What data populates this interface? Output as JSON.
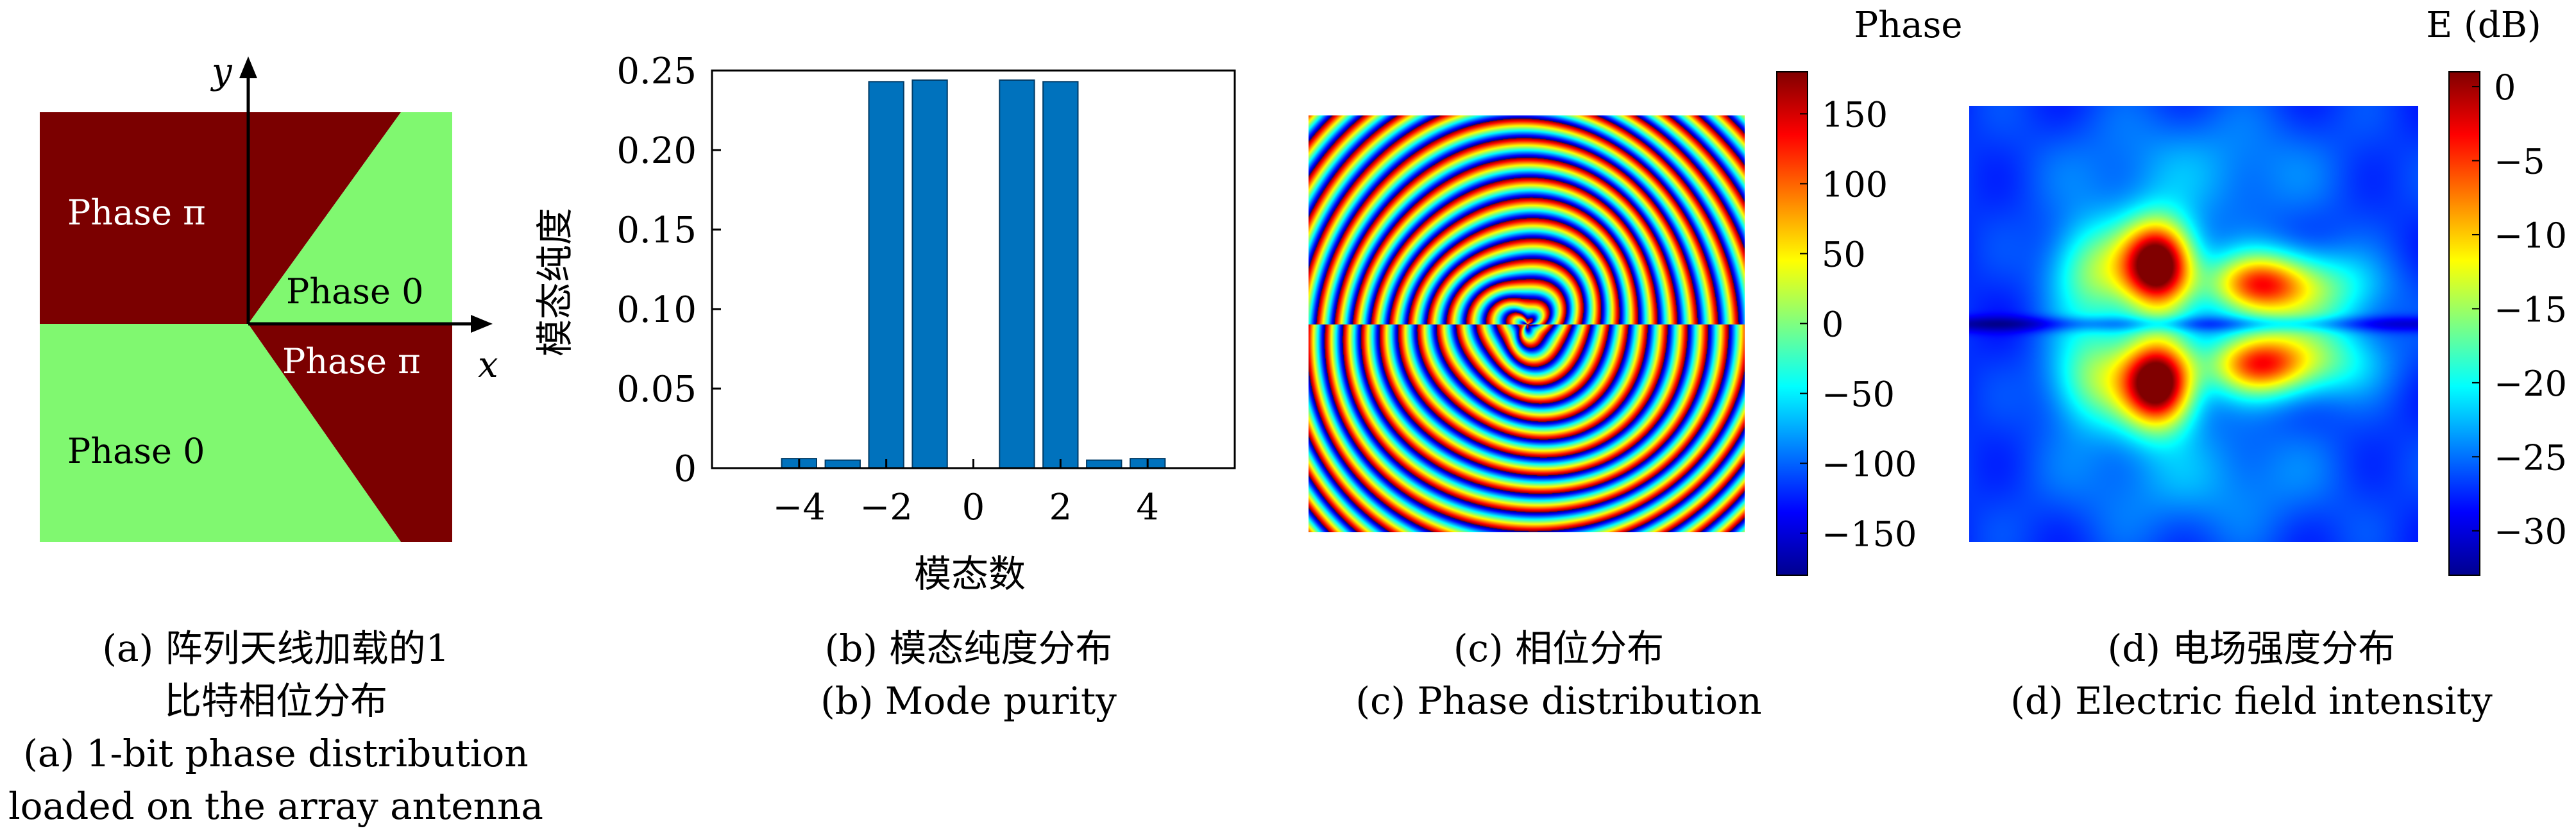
{
  "panel_a": {
    "labels": {
      "phase_pi_top": "Phase π",
      "phase_0_right": "Phase 0",
      "phase_pi_right": "Phase π",
      "phase_0_bottom": "Phase 0",
      "axis_x": "x",
      "axis_y": "y"
    },
    "colors": {
      "pi": "#7b0000",
      "zero": "#80f870"
    },
    "caption_cn_1": "(a) 阵列天线加载的1",
    "caption_cn_2": "比特相位分布",
    "caption_en_1": "(a) 1-bit phase distribution",
    "caption_en_2": "loaded on the array antenna"
  },
  "panel_b": {
    "caption_cn": "(b) 模态纯度分布",
    "caption_en": "(b) Mode purity"
  },
  "panel_c": {
    "colorbar_title": "Phase",
    "colorbar_ticks": [
      "150",
      "100",
      "50",
      "0",
      "−50",
      "−100",
      "−150"
    ],
    "caption_cn": "(c) 相位分布",
    "caption_en": "(c) Phase distribution"
  },
  "panel_d": {
    "colorbar_title": "E (dB)",
    "colorbar_ticks": [
      "0",
      "−5",
      "−10",
      "−15",
      "−20",
      "−25",
      "−30"
    ],
    "caption_cn": "(d) 电场强度分布",
    "caption_en": "(d) Electric field intensity"
  },
  "chart_data": [
    {
      "type": "bar",
      "x": [
        -5,
        -4,
        -3,
        -2,
        -1,
        0,
        1,
        2,
        3,
        4,
        5
      ],
      "values": [
        0.0,
        0.006,
        0.005,
        0.243,
        0.244,
        0.0,
        0.244,
        0.243,
        0.005,
        0.006,
        0.0
      ],
      "xlabel": "模态数",
      "ylabel": "模态纯度",
      "xlim": [
        -6,
        6
      ],
      "ylim": [
        0,
        0.25
      ],
      "xticks": [
        "−4",
        "−2",
        "0",
        "2",
        "4"
      ],
      "yticks": [
        "0",
        "0.05",
        "0.10",
        "0.15",
        "0.20",
        "0.25"
      ],
      "bar_color": "#0072bd",
      "grid": false
    },
    {
      "type": "heatmap",
      "colorbar_range": [
        -180,
        180
      ],
      "colormap": "jet"
    },
    {
      "type": "heatmap",
      "colorbar_range": [
        -33,
        1
      ],
      "colormap": "jet"
    }
  ]
}
